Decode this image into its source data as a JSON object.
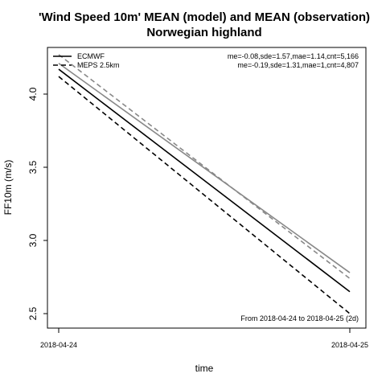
{
  "chart_data": {
    "type": "line",
    "title": "'Wind Speed 10m' MEAN (model) and MEAN (observation)",
    "subtitle": "Norwegian highland",
    "xlabel": "time",
    "ylabel": "FF10m (m/s)",
    "x": [
      "2018-04-24",
      "2018-04-25"
    ],
    "ylim": [
      2.45,
      4.3
    ],
    "yticks": [
      "2.5",
      "3.0",
      "3.5",
      "4.0"
    ],
    "grid": false,
    "legend": {
      "position": "top-left",
      "entries": [
        {
          "name": "ECMWF",
          "dash": "solid"
        },
        {
          "name": "MEPS 2.5km",
          "dash": "dashed"
        }
      ]
    },
    "series": [
      {
        "name": "ECMWF",
        "role": "model",
        "color": "#000000",
        "dash": "solid",
        "values": [
          4.17,
          2.65
        ]
      },
      {
        "name": "ECMWF",
        "role": "observation",
        "color": "#888888",
        "dash": "solid",
        "values": [
          4.21,
          2.78
        ]
      },
      {
        "name": "MEPS 2.5km",
        "role": "model",
        "color": "#000000",
        "dash": "dashed",
        "values": [
          4.12,
          2.5
        ]
      },
      {
        "name": "MEPS 2.5km",
        "role": "observation",
        "color": "#888888",
        "dash": "dashed",
        "values": [
          4.27,
          2.74
        ]
      }
    ],
    "stats": [
      "me=-0.08,sde=1.57,mae=1.14,cnt=5,166",
      "me=-0.19,sde=1.31,mae=1,cnt=4,807"
    ],
    "period": "From 2018-04-24 to 2018-04-25 (2d)"
  }
}
